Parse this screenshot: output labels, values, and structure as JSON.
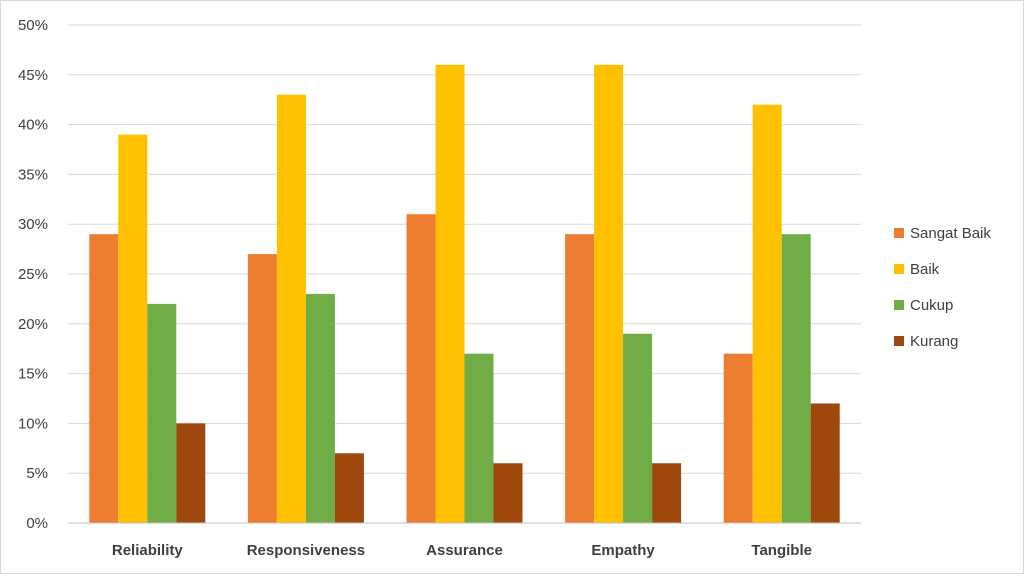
{
  "chart_data": {
    "type": "bar",
    "title": "",
    "xlabel": "",
    "ylabel": "",
    "categories": [
      "Reliability",
      "Responsiveness",
      "Assurance",
      "Empathy",
      "Tangible"
    ],
    "series": [
      {
        "name": "Sangat Baik",
        "color": "#ED7D31",
        "values": [
          29,
          27,
          31,
          29,
          17
        ]
      },
      {
        "name": "Baik",
        "color": "#FFC000",
        "values": [
          39,
          43,
          46,
          46,
          42
        ]
      },
      {
        "name": "Cukup",
        "color": "#70AD47",
        "values": [
          22,
          23,
          17,
          19,
          29
        ]
      },
      {
        "name": "Kurang",
        "color": "#9E480E",
        "values": [
          10,
          7,
          6,
          6,
          12
        ]
      }
    ],
    "ylim": [
      0,
      50
    ],
    "yticks": [
      "0%",
      "5%",
      "10%",
      "15%",
      "20%",
      "25%",
      "30%",
      "35%",
      "40%",
      "45%",
      "50%"
    ],
    "grid": true,
    "legend_position": "right"
  }
}
